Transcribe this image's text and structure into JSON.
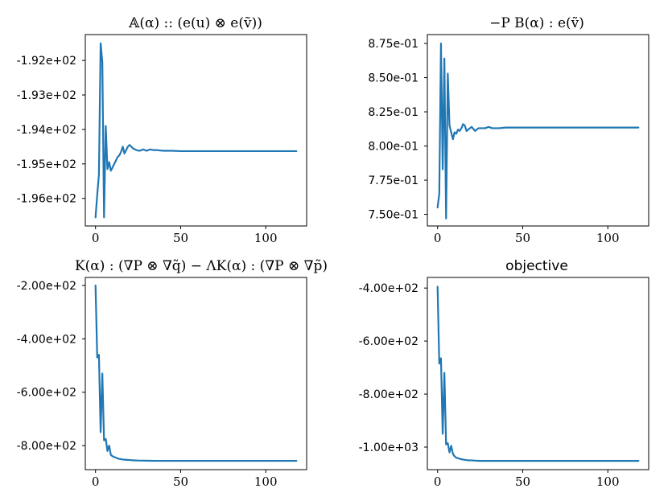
{
  "chart_data": [
    {
      "type": "line",
      "title": "𝔸(α) :: (e(u) ⊗ e(ṽ))",
      "xlim": [
        -6,
        124
      ],
      "ylim": [
        -196.8,
        -191.25
      ],
      "xticks": [
        0,
        50,
        100
      ],
      "xtick_labels": [
        "0",
        "50",
        "100"
      ],
      "yticks": [
        -196,
        -195,
        -194,
        -193,
        -192
      ],
      "ytick_labels": [
        "-1.96e+02",
        "-1.95e+02",
        "-1.94e+02",
        "-1.93e+02",
        "-1.92e+02"
      ],
      "series": [
        {
          "x": [
            0,
            1,
            2,
            3,
            4,
            5,
            6,
            7,
            8,
            9,
            10,
            11,
            12,
            13,
            14,
            15,
            16,
            17,
            18,
            19,
            20,
            22,
            24,
            26,
            28,
            30,
            32,
            34,
            36,
            40,
            45,
            50,
            60,
            70,
            80,
            90,
            100,
            110,
            118
          ],
          "y": [
            -196.55,
            -195.9,
            -195.3,
            -191.5,
            -192.05,
            -196.55,
            -193.9,
            -195.15,
            -194.95,
            -195.2,
            -195.1,
            -195.0,
            -194.9,
            -194.8,
            -194.75,
            -194.65,
            -194.5,
            -194.7,
            -194.6,
            -194.5,
            -194.45,
            -194.55,
            -194.6,
            -194.62,
            -194.58,
            -194.62,
            -194.58,
            -194.6,
            -194.6,
            -194.62,
            -194.62,
            -194.63,
            -194.63,
            -194.63,
            -194.63,
            -194.63,
            -194.63,
            -194.63,
            -194.63
          ]
        }
      ]
    },
    {
      "type": "line",
      "title": "−P B(α) : e(ṽ)",
      "xlim": [
        -6,
        124
      ],
      "ylim": [
        0.7415,
        0.8815
      ],
      "xticks": [
        0,
        50,
        100
      ],
      "xtick_labels": [
        "0",
        "50",
        "100"
      ],
      "yticks": [
        0.75,
        0.775,
        0.8,
        0.825,
        0.85,
        0.875
      ],
      "ytick_labels": [
        "7.50e-01",
        "7.75e-01",
        "8.00e-01",
        "8.25e-01",
        "8.50e-01",
        "8.75e-01"
      ],
      "series": [
        {
          "x": [
            0,
            1,
            2,
            3,
            4,
            5,
            6,
            7,
            8,
            9,
            10,
            11,
            12,
            13,
            14,
            15,
            16,
            17,
            18,
            19,
            20,
            22,
            24,
            26,
            28,
            30,
            32,
            34,
            36,
            40,
            45,
            50,
            60,
            70,
            80,
            90,
            100,
            110,
            118
          ],
          "y": [
            0.755,
            0.765,
            0.875,
            0.783,
            0.864,
            0.747,
            0.853,
            0.815,
            0.81,
            0.805,
            0.81,
            0.809,
            0.812,
            0.811,
            0.813,
            0.816,
            0.815,
            0.811,
            0.812,
            0.813,
            0.814,
            0.811,
            0.813,
            0.813,
            0.813,
            0.814,
            0.813,
            0.813,
            0.813,
            0.8135,
            0.8135,
            0.8135,
            0.8135,
            0.8135,
            0.8135,
            0.8135,
            0.8135,
            0.8135,
            0.8135
          ]
        }
      ]
    },
    {
      "type": "line",
      "title": "K(α) : (∇P ⊗ ∇q̃) − ΛK(α) : (∇P ⊗ ∇p̃)",
      "xlim": [
        -6,
        124
      ],
      "ylim": [
        -890,
        -170
      ],
      "xticks": [
        0,
        50,
        100
      ],
      "xtick_labels": [
        "0",
        "50",
        "100"
      ],
      "yticks": [
        -200,
        -400,
        -600,
        -800
      ],
      "ytick_labels": [
        "-2.00e+02",
        "-4.00e+02",
        "-6.00e+02",
        "-8.00e+02"
      ],
      "series": [
        {
          "x": [
            0,
            1,
            2,
            3,
            4,
            5,
            6,
            7,
            8,
            9,
            10,
            11,
            12,
            13,
            14,
            16,
            18,
            20,
            22,
            25,
            30,
            35,
            40,
            50,
            60,
            70,
            80,
            90,
            100,
            110,
            118
          ],
          "y": [
            -200,
            -470,
            -460,
            -750,
            -530,
            -780,
            -775,
            -820,
            -800,
            -835,
            -840,
            -843,
            -845,
            -848,
            -850,
            -852,
            -853,
            -854,
            -855,
            -856,
            -856.5,
            -857,
            -857,
            -857,
            -857,
            -857,
            -857,
            -857,
            -857,
            -857,
            -857
          ]
        }
      ]
    },
    {
      "type": "line",
      "title": "objective",
      "xlim": [
        -6,
        124
      ],
      "ylim": [
        -1085,
        -360
      ],
      "xticks": [
        0,
        50,
        100
      ],
      "xtick_labels": [
        "0",
        "50",
        "100"
      ],
      "yticks": [
        -400,
        -600,
        -800,
        -1000
      ],
      "ytick_labels": [
        "-4.00e+02",
        "-6.00e+02",
        "-8.00e+02",
        "-1.00e+03"
      ],
      "series": [
        {
          "x": [
            0,
            1,
            2,
            3,
            4,
            5,
            6,
            7,
            8,
            9,
            10,
            11,
            12,
            13,
            14,
            16,
            18,
            20,
            22,
            25,
            30,
            35,
            40,
            50,
            60,
            70,
            80,
            90,
            100,
            110,
            118
          ],
          "y": [
            -395,
            -685,
            -665,
            -950,
            -720,
            -990,
            -985,
            -1020,
            -995,
            -1025,
            -1035,
            -1040,
            -1042,
            -1044,
            -1046,
            -1048,
            -1050,
            -1050,
            -1051,
            -1052,
            -1052,
            -1052,
            -1052,
            -1052,
            -1052,
            -1052,
            -1052,
            -1052,
            -1052,
            -1052,
            -1052
          ]
        }
      ]
    }
  ]
}
